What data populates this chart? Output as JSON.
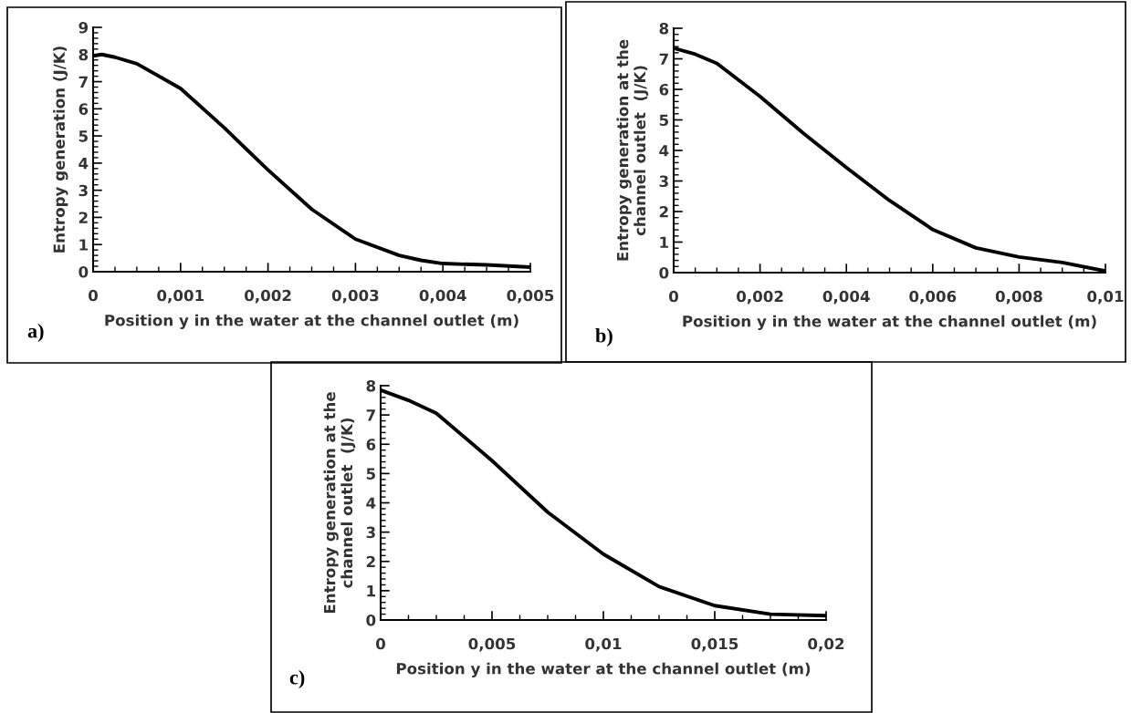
{
  "chart_data": [
    {
      "type": "line",
      "xlabel": "Position y in the water at the channel outlet (m)",
      "ylabel": "Entropy generation (J/K)",
      "annotations": [
        "a)"
      ],
      "x": [
        0,
        0.0001,
        0.00025,
        0.0005,
        0.001,
        0.0015,
        0.002,
        0.0025,
        0.003,
        0.0035,
        0.00375,
        0.004,
        0.0045,
        0.005
      ],
      "series": [
        {
          "color": "#000000",
          "values": [
            7.95,
            8.0,
            7.9,
            7.66,
            6.75,
            5.3,
            3.75,
            2.3,
            1.2,
            0.6,
            0.42,
            0.3,
            0.25,
            0.17
          ]
        }
      ],
      "xlim": [
        0,
        0.005
      ],
      "ylim": [
        0,
        9
      ],
      "xticks": [
        0,
        {
          "value": 0.001,
          "label": "0,001"
        },
        {
          "value": 0.002,
          "label": "0,002"
        },
        {
          "value": 0.003,
          "label": "0,003"
        },
        {
          "value": 0.004,
          "label": "0,004"
        },
        {
          "value": 0.005,
          "label": "0,005"
        }
      ],
      "yticks": [
        0,
        1,
        2,
        3,
        4,
        5,
        6,
        7,
        8,
        9
      ],
      "grid": false,
      "legend": false
    },
    {
      "type": "line",
      "xlabel": "Position y in the water at the channel outlet (m)",
      "ylabel": "Entropy generation at the\nchannel outlet  (J/K)",
      "annotations": [
        "b)"
      ],
      "x": [
        0,
        0.0005,
        0.001,
        0.002,
        0.003,
        0.004,
        0.005,
        0.006,
        0.007,
        0.008,
        0.009,
        0.01
      ],
      "series": [
        {
          "color": "#000000",
          "values": [
            7.35,
            7.15,
            6.85,
            5.77,
            4.57,
            3.44,
            2.36,
            1.41,
            0.81,
            0.51,
            0.33,
            0.05
          ]
        }
      ],
      "xlim": [
        0,
        0.01
      ],
      "ylim": [
        0,
        8
      ],
      "xticks": [
        0,
        {
          "value": 0.002,
          "label": "0,002"
        },
        {
          "value": 0.004,
          "label": "0,004"
        },
        {
          "value": 0.006,
          "label": "0,006"
        },
        {
          "value": 0.008,
          "label": "0,008"
        },
        {
          "value": 0.01,
          "label": "0,01"
        }
      ],
      "yticks": [
        0,
        1,
        2,
        3,
        4,
        5,
        6,
        7,
        8
      ],
      "grid": false,
      "legend": false
    },
    {
      "type": "line",
      "xlabel": "Position y in the water at the channel outlet (m)",
      "ylabel": "Entropy generation at the\nchannel outlet  (J/K)",
      "annotations": [
        "c)"
      ],
      "x": [
        0,
        0.00125,
        0.0025,
        0.005,
        0.0075,
        0.01,
        0.0125,
        0.015,
        0.0175,
        0.02
      ],
      "series": [
        {
          "color": "#000000",
          "values": [
            7.85,
            7.5,
            7.06,
            5.44,
            3.68,
            2.25,
            1.14,
            0.49,
            0.2,
            0.15
          ]
        }
      ],
      "xlim": [
        0,
        0.02
      ],
      "ylim": [
        0,
        8
      ],
      "xticks": [
        0,
        {
          "value": 0.005,
          "label": "0,005"
        },
        {
          "value": 0.01,
          "label": "0,01"
        },
        {
          "value": 0.015,
          "label": "0,015"
        },
        {
          "value": 0.02,
          "label": "0,02"
        }
      ],
      "yticks": [
        0,
        1,
        2,
        3,
        4,
        5,
        6,
        7,
        8
      ],
      "grid": false,
      "legend": false
    }
  ]
}
